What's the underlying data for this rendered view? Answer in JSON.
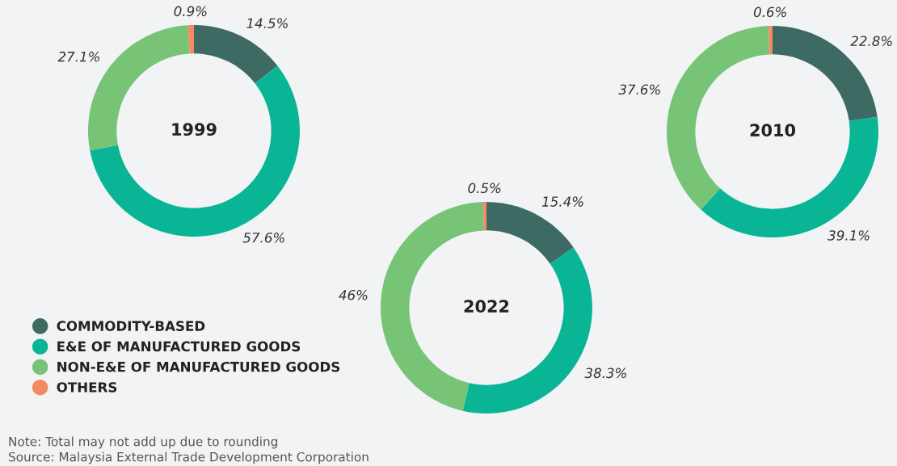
{
  "chart_data": [
    {
      "type": "donut",
      "title": "1999",
      "categories": [
        "COMMODITY-BASED",
        "E&E OF MANUFACTURED GOODS",
        "NON-E&E OF MANUFACTURED GOODS",
        "OTHERS"
      ],
      "values": [
        14.5,
        57.6,
        27.1,
        0.9
      ],
      "value_labels": [
        "14.5%",
        "57.6%",
        "27.1%",
        "0.9%"
      ],
      "colors": [
        "#3d6b63",
        "#0ab595",
        "#77c477",
        "#f58a62"
      ],
      "legend": "bottom left",
      "annotations": [
        "Note: Total may not add up due to rounding",
        "Source: Malaysia External Trade Development Corporation"
      ]
    },
    {
      "type": "donut",
      "title": "2022",
      "values": [
        15.4,
        38.3,
        46,
        0.5
      ],
      "value_labels": [
        "15.4%",
        "38.3%",
        "46%",
        "0.5%"
      ],
      "colors": [
        "#3d6b63",
        "#0ab595",
        "#77c477",
        "#f58a62"
      ]
    },
    {
      "type": "donut",
      "title": "2010",
      "values": [
        22.8,
        39.1,
        37.6,
        0.6
      ],
      "value_labels": [
        "22.8%",
        "39.1%",
        "37.6%",
        "0.6%"
      ],
      "colors": [
        "#3d6b63",
        "#0ab595",
        "#77c477",
        "#f58a62"
      ]
    }
  ]
}
